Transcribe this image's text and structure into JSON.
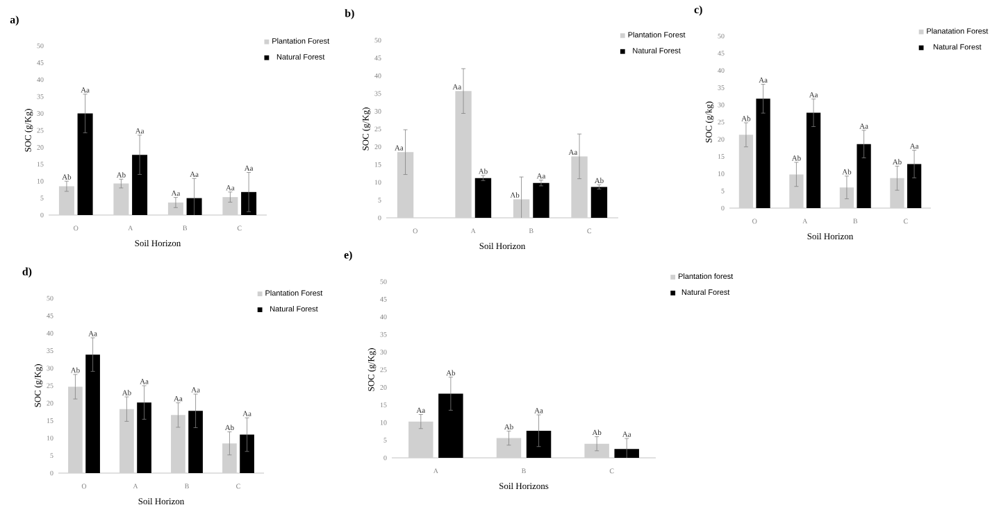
{
  "chart_data": [
    {
      "type": "bar",
      "title": "a)",
      "xlabel": "Soil Horizon",
      "ylabel": "SOC (g/Kg)",
      "categories": [
        "O",
        "A",
        "B",
        "C"
      ],
      "ylim": [
        0,
        50
      ],
      "yticks": [
        0,
        5,
        10,
        15,
        20,
        25,
        30,
        35,
        40,
        45,
        50
      ],
      "legend": "top right",
      "series": [
        {
          "name": "Plantation Forest",
          "color": "#d0d0d0",
          "values": [
            8.5,
            9.3,
            3.7,
            5.3
          ],
          "errors": [
            1.5,
            1.3,
            1.5,
            1.5
          ],
          "value_labels": [
            "Ab",
            "Ab",
            "Aa",
            "Aa"
          ]
        },
        {
          "name": "Natural Forest",
          "color": "#000000",
          "values": [
            30,
            17.8,
            5,
            6.8
          ],
          "errors": [
            5.7,
            5.8,
            5.8,
            5.8
          ],
          "value_labels": [
            "Aa",
            "Aa",
            "Aa",
            "Aa"
          ]
        }
      ]
    },
    {
      "type": "bar",
      "title": "b)",
      "xlabel": "Soil Horizon",
      "ylabel": "SOC (g/Kg)",
      "categories": [
        "O",
        "A",
        "B",
        "C"
      ],
      "ylim": [
        0,
        50
      ],
      "yticks": [
        0,
        5,
        10,
        15,
        20,
        25,
        30,
        35,
        40,
        45,
        50
      ],
      "legend": "top right",
      "series": [
        {
          "name": "Plantation Forest",
          "color": "#d0d0d0",
          "values": [
            18.5,
            35.7,
            5.2,
            17.3
          ],
          "errors": [
            6.3,
            6.3,
            6.3,
            6.3
          ],
          "value_labels": [
            "Aa",
            "Aa",
            "Ab",
            "Aa"
          ]
        },
        {
          "name": "Natural Forest",
          "color": "#000000",
          "values": [
            null,
            11.2,
            9.8,
            8.7
          ],
          "errors": [
            null,
            0.7,
            0.8,
            0.6
          ],
          "value_labels": [
            null,
            "Ab",
            "Aa",
            "Ab"
          ]
        }
      ]
    },
    {
      "type": "bar",
      "title": "c)",
      "xlabel": "Soil Horizon",
      "ylabel": "SOC (g/kg)",
      "categories": [
        "O",
        "A",
        "B",
        "C"
      ],
      "ylim": [
        0,
        50
      ],
      "yticks": [
        0,
        5,
        10,
        15,
        20,
        25,
        30,
        35,
        40,
        45,
        50
      ],
      "legend": "top right",
      "series": [
        {
          "name": "Planatation Forest",
          "color": "#d0d0d0",
          "values": [
            21.3,
            9.8,
            6,
            8.7
          ],
          "errors": [
            3.5,
            3.5,
            3.3,
            3.5
          ],
          "value_labels": [
            "Ab",
            "Ab",
            "Ab",
            "Ab"
          ]
        },
        {
          "name": "Natural Forest",
          "color": "#000000",
          "values": [
            31.8,
            27.7,
            18.6,
            12.8
          ],
          "errors": [
            4.2,
            4,
            4,
            4
          ],
          "value_labels": [
            "Aa",
            "Aa",
            "Aa",
            "Aa"
          ]
        }
      ]
    },
    {
      "type": "bar",
      "title": "d)",
      "xlabel": "Soil Horizon",
      "ylabel": "SOC (g/Kg)",
      "categories": [
        "O",
        "A",
        "B",
        "C"
      ],
      "ylim": [
        0,
        50
      ],
      "yticks": [
        0,
        5,
        10,
        15,
        20,
        25,
        30,
        35,
        40,
        45,
        50
      ],
      "legend": "top right",
      "series": [
        {
          "name": "Plantation Forest",
          "color": "#d0d0d0",
          "values": [
            24.7,
            18.3,
            16.6,
            8.5
          ],
          "errors": [
            3.5,
            3.5,
            3.5,
            3.3
          ],
          "value_labels": [
            "Ab",
            "Ab",
            "Aa",
            "Ab"
          ]
        },
        {
          "name": "Natural Forest",
          "color": "#000000",
          "values": [
            33.9,
            20.2,
            17.8,
            11
          ],
          "errors": [
            4.8,
            4.8,
            4.8,
            4.8
          ],
          "value_labels": [
            "Aa",
            "Aa",
            "Aa",
            "Aa"
          ]
        }
      ]
    },
    {
      "type": "bar",
      "title": "e)",
      "xlabel": "Soil Horizons",
      "ylabel": "SOC (g/Kg)",
      "categories": [
        "A",
        "B",
        "C"
      ],
      "ylim": [
        0,
        50
      ],
      "yticks": [
        0,
        5,
        10,
        15,
        20,
        25,
        30,
        35,
        40,
        45,
        50
      ],
      "legend": "top right",
      "series": [
        {
          "name": "Plantation forest",
          "color": "#d0d0d0",
          "values": [
            10.3,
            5.6,
            4
          ],
          "errors": [
            2,
            2,
            2
          ],
          "value_labels": [
            "Aa",
            "Ab",
            "Ab"
          ]
        },
        {
          "name": "Natural Forest",
          "color": "#000000",
          "values": [
            18.2,
            7.7,
            2.5
          ],
          "errors": [
            4.7,
            4.5,
            3
          ],
          "value_labels": [
            "Ab",
            "Aa",
            "Aa"
          ]
        }
      ]
    }
  ]
}
